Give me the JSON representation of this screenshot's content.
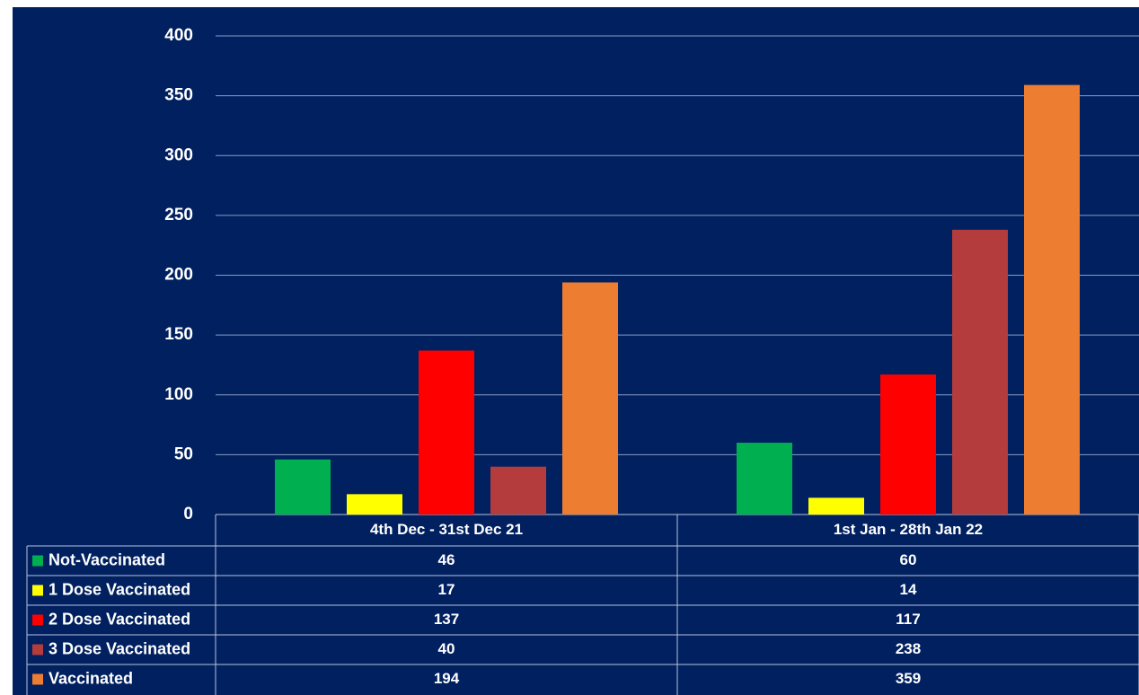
{
  "chart_data": {
    "type": "bar",
    "categories": [
      "4th Dec - 31st Dec 21",
      "1st Jan - 28th Jan 22"
    ],
    "series": [
      {
        "name": "Not-Vaccinated",
        "color": "#00b050",
        "values": [
          46,
          60
        ]
      },
      {
        "name": "1 Dose Vaccinated",
        "color": "#ffff00",
        "values": [
          17,
          14
        ]
      },
      {
        "name": "2 Dose Vaccinated",
        "color": "#ff0000",
        "values": [
          137,
          117
        ]
      },
      {
        "name": "3 Dose Vaccinated",
        "color": "#b43c3c",
        "values": [
          40,
          238
        ]
      },
      {
        "name": "Vaccinated",
        "color": "#ed7d31",
        "values": [
          194,
          359
        ]
      }
    ],
    "ylim": [
      0,
      400
    ],
    "yticks": [
      0,
      50,
      100,
      150,
      200,
      250,
      300,
      350,
      400
    ],
    "grid": true
  }
}
